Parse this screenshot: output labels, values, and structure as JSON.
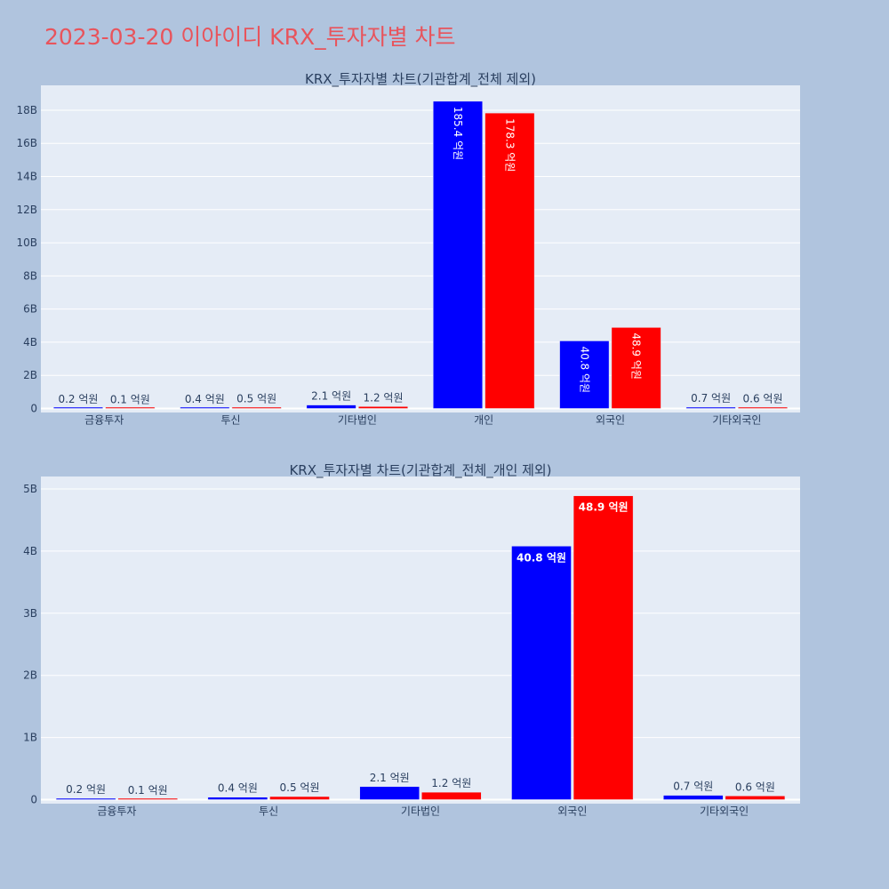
{
  "page": {
    "title": "2023-03-20 이아이디 KRX_투자자별 차트"
  },
  "colors": {
    "series_a": "#0000ff",
    "series_b": "#ff0000",
    "plot_bg": "#e5ecf6",
    "page_bg": "#b0c4de",
    "title": "#e8545c"
  },
  "chart_data": [
    {
      "type": "bar",
      "title": "KRX_투자자별 차트(기관합계_전체 제외)",
      "categories": [
        "금융투자",
        "투신",
        "기타법인",
        "개인",
        "외국인",
        "기타외국인"
      ],
      "series": [
        {
          "values": [
            20000000,
            40000000,
            210000000,
            18540000000,
            4080000000,
            70000000
          ],
          "labels": [
            "0.2 억원",
            "0.4 억원",
            "2.1 억원",
            "185.4 억원",
            "40.8 억원",
            "0.7 억원"
          ]
        },
        {
          "values": [
            10000000,
            50000000,
            120000000,
            17830000000,
            4890000000,
            60000000
          ],
          "labels": [
            "0.1 억원",
            "0.5 억원",
            "1.2 억원",
            "178.3 억원",
            "48.9 억원",
            "0.6 억원"
          ]
        }
      ],
      "ylim": [
        0,
        19500000000
      ],
      "yticks": [
        0,
        2000000000,
        4000000000,
        6000000000,
        8000000000,
        10000000000,
        12000000000,
        14000000000,
        16000000000,
        18000000000
      ],
      "ytick_labels": [
        "0",
        "2B",
        "4B",
        "6B",
        "8B",
        "10B",
        "12B",
        "14B",
        "16B",
        "18B"
      ],
      "inside_label_orientation": "vertical"
    },
    {
      "type": "bar",
      "title": "KRX_투자자별 차트(기관합계_전체_개인 제외)",
      "categories": [
        "금융투자",
        "투신",
        "기타법인",
        "외국인",
        "기타외국인"
      ],
      "series": [
        {
          "values": [
            20000000,
            40000000,
            210000000,
            4080000000,
            70000000
          ],
          "labels": [
            "0.2 억원",
            "0.4 억원",
            "2.1 억원",
            "40.8 억원",
            "0.7 억원"
          ]
        },
        {
          "values": [
            10000000,
            50000000,
            120000000,
            4890000000,
            60000000
          ],
          "labels": [
            "0.1 억원",
            "0.5 억원",
            "1.2 억원",
            "48.9 억원",
            "0.6 억원"
          ]
        }
      ],
      "ylim": [
        0,
        5200000000
      ],
      "yticks": [
        0,
        1000000000,
        2000000000,
        3000000000,
        4000000000,
        5000000000
      ],
      "ytick_labels": [
        "0",
        "1B",
        "2B",
        "3B",
        "4B",
        "5B"
      ],
      "inside_label_orientation": "horizontal"
    }
  ]
}
